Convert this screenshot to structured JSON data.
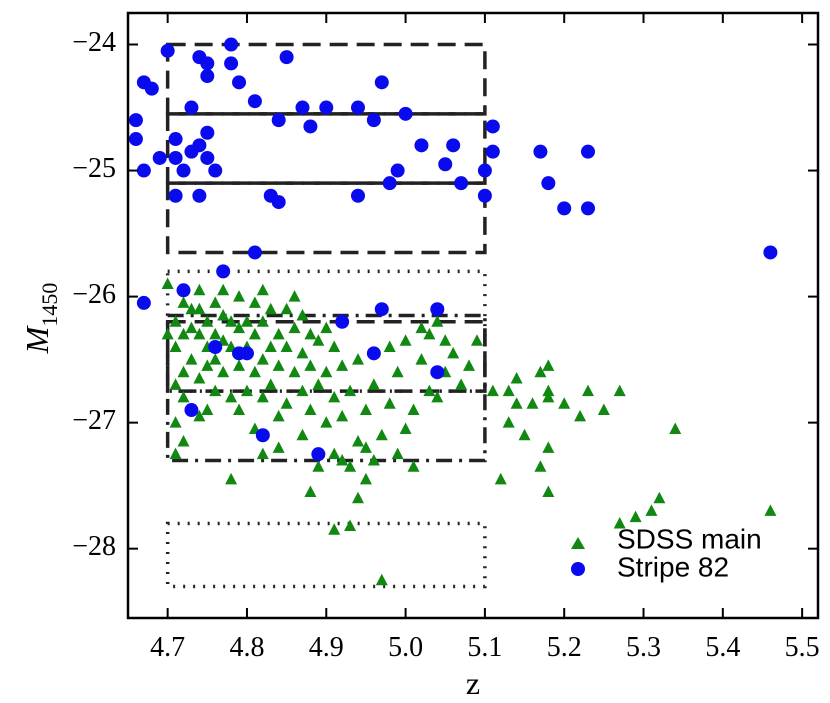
{
  "chart_data": {
    "type": "scatter",
    "xlabel": "z",
    "ylabel": "M",
    "ylabel_sub": "1450",
    "xlim": [
      4.65,
      5.52
    ],
    "ylim": [
      -23.75,
      -28.55
    ],
    "x_ticks": [
      4.7,
      4.8,
      4.9,
      5.0,
      5.1,
      5.2,
      5.3,
      5.4,
      5.5
    ],
    "x_tick_labels": [
      "4.7",
      "4.8",
      "4.9",
      "5.0",
      "5.1",
      "5.2",
      "5.3",
      "5.4",
      "5.5"
    ],
    "y_ticks": [
      -24,
      -25,
      -26,
      -27,
      -28
    ],
    "y_tick_labels": [
      "−24",
      "−25",
      "−26",
      "−27",
      "−28"
    ],
    "legend_position": "bottom-right",
    "series": [
      {
        "name": "SDSS main",
        "marker": "triangle",
        "color": "#118811",
        "points": [
          [
            4.7,
            -26.3
          ],
          [
            4.7,
            -25.9
          ],
          [
            4.71,
            -27.25
          ],
          [
            4.71,
            -27.0
          ],
          [
            4.71,
            -26.7
          ],
          [
            4.71,
            -26.4
          ],
          [
            4.71,
            -26.2
          ],
          [
            4.72,
            -27.15
          ],
          [
            4.72,
            -26.8
          ],
          [
            4.72,
            -26.6
          ],
          [
            4.72,
            -26.3
          ],
          [
            4.72,
            -26.05
          ],
          [
            4.73,
            -26.5
          ],
          [
            4.73,
            -26.25
          ],
          [
            4.73,
            -26.1
          ],
          [
            4.74,
            -26.95
          ],
          [
            4.74,
            -26.65
          ],
          [
            4.74,
            -26.3
          ],
          [
            4.74,
            -26.1
          ],
          [
            4.74,
            -25.95
          ],
          [
            4.75,
            -26.9
          ],
          [
            4.75,
            -26.55
          ],
          [
            4.75,
            -26.4
          ],
          [
            4.75,
            -26.2
          ],
          [
            4.76,
            -26.75
          ],
          [
            4.76,
            -26.5
          ],
          [
            4.76,
            -26.3
          ],
          [
            4.76,
            -26.05
          ],
          [
            4.77,
            -26.6
          ],
          [
            4.77,
            -26.35
          ],
          [
            4.77,
            -26.15
          ],
          [
            4.77,
            -25.95
          ],
          [
            4.78,
            -27.45
          ],
          [
            4.78,
            -26.8
          ],
          [
            4.78,
            -26.4
          ],
          [
            4.78,
            -26.2
          ],
          [
            4.79,
            -26.9
          ],
          [
            4.79,
            -26.55
          ],
          [
            4.79,
            -26.25
          ],
          [
            4.79,
            -26.0
          ],
          [
            4.8,
            -26.75
          ],
          [
            4.8,
            -26.4
          ],
          [
            4.8,
            -26.2
          ],
          [
            4.81,
            -27.05
          ],
          [
            4.81,
            -26.6
          ],
          [
            4.81,
            -26.3
          ],
          [
            4.81,
            -26.05
          ],
          [
            4.82,
            -27.25
          ],
          [
            4.82,
            -26.8
          ],
          [
            4.82,
            -26.5
          ],
          [
            4.82,
            -26.2
          ],
          [
            4.82,
            -25.95
          ],
          [
            4.83,
            -26.7
          ],
          [
            4.83,
            -26.4
          ],
          [
            4.83,
            -26.1
          ],
          [
            4.84,
            -27.2
          ],
          [
            4.84,
            -26.95
          ],
          [
            4.84,
            -26.55
          ],
          [
            4.84,
            -26.3
          ],
          [
            4.85,
            -26.85
          ],
          [
            4.85,
            -26.4
          ],
          [
            4.85,
            -26.1
          ],
          [
            4.86,
            -26.6
          ],
          [
            4.86,
            -26.25
          ],
          [
            4.86,
            -26.0
          ],
          [
            4.87,
            -27.1
          ],
          [
            4.87,
            -26.75
          ],
          [
            4.87,
            -26.45
          ],
          [
            4.87,
            -26.15
          ],
          [
            4.88,
            -27.55
          ],
          [
            4.88,
            -26.9
          ],
          [
            4.88,
            -26.55
          ],
          [
            4.88,
            -26.3
          ],
          [
            4.89,
            -27.35
          ],
          [
            4.89,
            -26.7
          ],
          [
            4.89,
            -26.35
          ],
          [
            4.9,
            -27.0
          ],
          [
            4.9,
            -26.6
          ],
          [
            4.9,
            -26.25
          ],
          [
            4.91,
            -27.85
          ],
          [
            4.91,
            -27.25
          ],
          [
            4.91,
            -26.8
          ],
          [
            4.91,
            -26.4
          ],
          [
            4.92,
            -27.3
          ],
          [
            4.92,
            -26.95
          ],
          [
            4.92,
            -26.55
          ],
          [
            4.93,
            -27.82
          ],
          [
            4.93,
            -27.35
          ],
          [
            4.93,
            -26.75
          ],
          [
            4.94,
            -27.6
          ],
          [
            4.94,
            -27.15
          ],
          [
            4.94,
            -26.5
          ],
          [
            4.95,
            -27.45
          ],
          [
            4.95,
            -27.2
          ],
          [
            4.95,
            -26.9
          ],
          [
            4.96,
            -27.3
          ],
          [
            4.96,
            -26.7
          ],
          [
            4.97,
            -28.25
          ],
          [
            4.97,
            -27.1
          ],
          [
            4.98,
            -26.85
          ],
          [
            4.98,
            -26.4
          ],
          [
            4.99,
            -27.25
          ],
          [
            4.99,
            -26.6
          ],
          [
            5.0,
            -27.05
          ],
          [
            5.0,
            -26.35
          ],
          [
            5.01,
            -27.35
          ],
          [
            5.01,
            -26.9
          ],
          [
            5.02,
            -26.5
          ],
          [
            5.02,
            -26.25
          ],
          [
            5.03,
            -26.75
          ],
          [
            5.03,
            -26.3
          ],
          [
            5.04,
            -26.8
          ],
          [
            5.04,
            -26.2
          ],
          [
            5.05,
            -26.6
          ],
          [
            5.05,
            -26.35
          ],
          [
            5.06,
            -26.45
          ],
          [
            5.07,
            -26.7
          ],
          [
            5.08,
            -26.55
          ],
          [
            5.09,
            -26.35
          ],
          [
            5.11,
            -26.75
          ],
          [
            5.12,
            -27.45
          ],
          [
            5.13,
            -27.0
          ],
          [
            5.13,
            -26.75
          ],
          [
            5.14,
            -26.85
          ],
          [
            5.14,
            -26.65
          ],
          [
            5.15,
            -27.1
          ],
          [
            5.16,
            -26.85
          ],
          [
            5.17,
            -27.35
          ],
          [
            5.17,
            -26.6
          ],
          [
            5.18,
            -27.55
          ],
          [
            5.18,
            -27.2
          ],
          [
            5.18,
            -26.8
          ],
          [
            5.18,
            -26.75
          ],
          [
            5.18,
            -26.55
          ],
          [
            5.2,
            -26.85
          ],
          [
            5.22,
            -26.95
          ],
          [
            5.23,
            -26.75
          ],
          [
            5.25,
            -26.9
          ],
          [
            5.27,
            -27.8
          ],
          [
            5.27,
            -26.75
          ],
          [
            5.29,
            -27.75
          ],
          [
            5.31,
            -27.7
          ],
          [
            5.32,
            -27.6
          ],
          [
            5.34,
            -27.05
          ],
          [
            5.46,
            -27.7
          ]
        ]
      },
      {
        "name": "Stripe 82",
        "marker": "circle",
        "color": "#0a0aee",
        "points": [
          [
            4.66,
            -24.75
          ],
          [
            4.66,
            -24.6
          ],
          [
            4.67,
            -25.0
          ],
          [
            4.67,
            -24.3
          ],
          [
            4.67,
            -26.05
          ],
          [
            4.68,
            -24.35
          ],
          [
            4.69,
            -24.9
          ],
          [
            4.7,
            -24.05
          ],
          [
            4.71,
            -24.9
          ],
          [
            4.71,
            -24.75
          ],
          [
            4.71,
            -25.2
          ],
          [
            4.72,
            -25.0
          ],
          [
            4.72,
            -25.95
          ],
          [
            4.73,
            -24.85
          ],
          [
            4.73,
            -24.5
          ],
          [
            4.73,
            -26.9
          ],
          [
            4.74,
            -25.2
          ],
          [
            4.74,
            -24.8
          ],
          [
            4.74,
            -24.1
          ],
          [
            4.75,
            -24.25
          ],
          [
            4.75,
            -24.15
          ],
          [
            4.75,
            -24.9
          ],
          [
            4.75,
            -24.7
          ],
          [
            4.76,
            -26.4
          ],
          [
            4.76,
            -25.0
          ],
          [
            4.77,
            -25.8
          ],
          [
            4.78,
            -24.15
          ],
          [
            4.78,
            -24.0
          ],
          [
            4.79,
            -26.45
          ],
          [
            4.79,
            -24.3
          ],
          [
            4.8,
            -26.45
          ],
          [
            4.81,
            -24.45
          ],
          [
            4.81,
            -25.65
          ],
          [
            4.82,
            -27.1
          ],
          [
            4.83,
            -25.2
          ],
          [
            4.84,
            -25.25
          ],
          [
            4.84,
            -24.6
          ],
          [
            4.85,
            -24.1
          ],
          [
            4.87,
            -24.5
          ],
          [
            4.88,
            -24.65
          ],
          [
            4.89,
            -27.25
          ],
          [
            4.9,
            -24.5
          ],
          [
            4.92,
            -26.2
          ],
          [
            4.94,
            -25.2
          ],
          [
            4.94,
            -24.5
          ],
          [
            4.96,
            -24.6
          ],
          [
            4.96,
            -26.45
          ],
          [
            4.97,
            -24.3
          ],
          [
            4.97,
            -26.1
          ],
          [
            4.98,
            -25.1
          ],
          [
            4.99,
            -25.0
          ],
          [
            5.0,
            -24.55
          ],
          [
            5.02,
            -24.8
          ],
          [
            5.04,
            -26.1
          ],
          [
            5.04,
            -26.6
          ],
          [
            5.05,
            -24.95
          ],
          [
            5.06,
            -24.8
          ],
          [
            5.07,
            -25.1
          ],
          [
            5.1,
            -25.2
          ],
          [
            5.1,
            -25.0
          ],
          [
            5.11,
            -24.85
          ],
          [
            5.11,
            -24.65
          ],
          [
            5.17,
            -24.85
          ],
          [
            5.18,
            -25.1
          ],
          [
            5.2,
            -25.3
          ],
          [
            5.23,
            -25.3
          ],
          [
            5.23,
            -24.85
          ],
          [
            5.46,
            -25.65
          ]
        ]
      }
    ],
    "regions": [
      {
        "name": "dotted",
        "style": "dotted",
        "boxes": [
          [
            4.7,
            5.1,
            -27.8,
            -28.3
          ],
          [
            4.7,
            5.1,
            -25.8,
            -26.75
          ]
        ]
      },
      {
        "name": "dash-dot",
        "style": "dashdot",
        "boxes": [
          [
            4.7,
            5.1,
            -26.15,
            -27.3
          ]
        ]
      },
      {
        "name": "dashed",
        "style": "dashed",
        "boxes": [
          [
            4.7,
            5.1,
            -24.0,
            -24.55
          ],
          [
            4.7,
            5.1,
            -24.55,
            -25.1
          ],
          [
            4.7,
            5.1,
            -25.1,
            -25.65
          ],
          [
            4.7,
            5.1,
            -26.2,
            -26.75
          ]
        ]
      }
    ]
  }
}
